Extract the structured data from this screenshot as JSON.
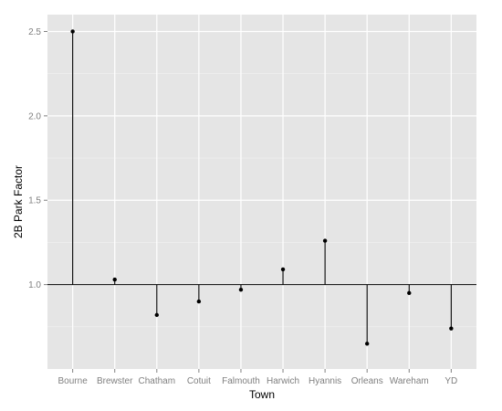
{
  "chart_data": {
    "type": "scatter",
    "style": "lollipop",
    "baseline": 1.0,
    "xlabel": "Town",
    "ylabel": "2B Park Factor",
    "categories": [
      "Bourne",
      "Brewster",
      "Chatham",
      "Cotuit",
      "Falmouth",
      "Harwich",
      "Hyannis",
      "Orleans",
      "Wareham",
      "YD"
    ],
    "values": [
      2.5,
      1.03,
      0.82,
      0.9,
      0.97,
      1.09,
      1.26,
      0.65,
      0.95,
      0.74
    ],
    "ylim": [
      0.5,
      2.6
    ],
    "yticks": [
      1.0,
      1.5,
      2.0,
      2.5
    ],
    "ytick_labels": [
      "1.0",
      "1.5",
      "2.0",
      "2.5"
    ],
    "grid": true,
    "colors": {
      "panel_background": "#e5e5e5",
      "grid_major": "#ffffff",
      "grid_minor": "#f2f2f2",
      "marks": "#000000",
      "tick_text": "#7f7f7f"
    }
  }
}
